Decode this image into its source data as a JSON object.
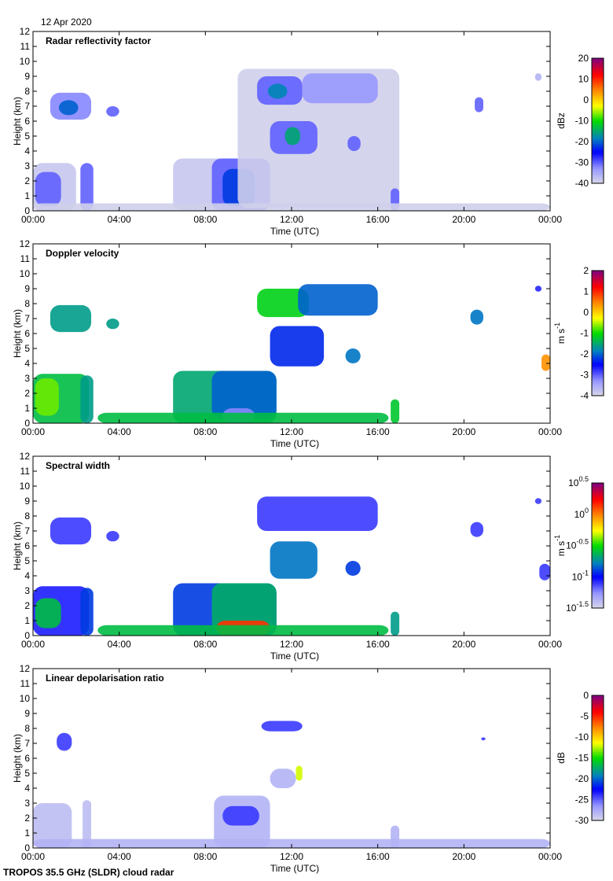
{
  "header": {
    "date": "12 Apr 2020"
  },
  "footer": {
    "caption": "TROPOS 35.5 GHz (SLDR) cloud radar"
  },
  "chart_data": [
    {
      "type": "heatmap",
      "title": "Radar reflectivity factor",
      "xlabel": "Time (UTC)",
      "ylabel": "Height (km)",
      "xlim": [
        0,
        24
      ],
      "ylim": [
        0,
        12
      ],
      "xticks": [
        "00:00",
        "04:00",
        "08:00",
        "12:00",
        "16:00",
        "20:00",
        "00:00"
      ],
      "yticks": [
        "0",
        "1",
        "2",
        "3",
        "4",
        "5",
        "6",
        "7",
        "8",
        "9",
        "10",
        "11",
        "12"
      ],
      "colorbar": {
        "label": "dBz",
        "label_sup": "",
        "range": [
          -40,
          20
        ],
        "ticks": [
          {
            "v": 20,
            "t": "20"
          },
          {
            "v": 10,
            "t": "10"
          },
          {
            "v": 0,
            "t": "0"
          },
          {
            "v": -10,
            "t": "-10"
          },
          {
            "v": -20,
            "t": "-20"
          },
          {
            "v": -30,
            "t": "-30"
          },
          {
            "v": -40,
            "t": "-40"
          }
        ]
      },
      "features": [
        {
          "t": [
            0,
            2,
            0,
            3.2
          ],
          "v": -38
        },
        {
          "t": [
            0.1,
            1.3,
            0.3,
            2.6
          ],
          "v": -30
        },
        {
          "t": [
            2.2,
            2.8,
            0,
            3.2
          ],
          "v": -30
        },
        {
          "t": [
            0.8,
            2.7,
            6.1,
            7.9
          ],
          "v": -32
        },
        {
          "t": [
            1.2,
            2.1,
            6.4,
            7.4
          ],
          "v": -20
        },
        {
          "t": [
            3.4,
            4.0,
            6.3,
            7.0
          ],
          "v": -30
        },
        {
          "t": [
            6.5,
            11,
            0,
            3.5
          ],
          "v": -38
        },
        {
          "t": [
            8.3,
            11,
            0,
            3.5
          ],
          "v": -30
        },
        {
          "t": [
            8.8,
            10.3,
            0.3,
            2.8
          ],
          "v": -22
        },
        {
          "t": [
            9.5,
            17,
            0.2,
            9.5
          ],
          "v": -39
        },
        {
          "t": [
            10.4,
            12.5,
            7.1,
            9
          ],
          "v": -30
        },
        {
          "t": [
            10.9,
            11.8,
            7.5,
            8.5
          ],
          "v": -18
        },
        {
          "t": [
            11,
            13.2,
            3.8,
            6
          ],
          "v": -30
        },
        {
          "t": [
            11.7,
            12.4,
            4.4,
            5.6
          ],
          "v": -15
        },
        {
          "t": [
            12.5,
            16,
            7.2,
            9.2
          ],
          "v": -33
        },
        {
          "t": [
            14.6,
            15.2,
            4,
            5
          ],
          "v": -30
        },
        {
          "t": [
            16.6,
            17,
            0,
            1.5
          ],
          "v": -30
        },
        {
          "t": [
            20.5,
            20.9,
            6.6,
            7.6
          ],
          "v": -30
        },
        {
          "t": [
            23.3,
            23.6,
            8.7,
            9.2
          ],
          "v": -36
        },
        {
          "t": [
            0,
            24,
            0,
            0.5
          ],
          "v": -39
        }
      ]
    },
    {
      "type": "heatmap",
      "title": "Doppler velocity",
      "xlabel": "Time (UTC)",
      "ylabel": "Height (km)",
      "xlim": [
        0,
        24
      ],
      "ylim": [
        0,
        12
      ],
      "xticks": [
        "00:00",
        "04:00",
        "08:00",
        "12:00",
        "16:00",
        "20:00",
        "00:00"
      ],
      "yticks": [
        "0",
        "1",
        "2",
        "3",
        "4",
        "5",
        "6",
        "7",
        "8",
        "9",
        "10",
        "11",
        "12"
      ],
      "colorbar": {
        "label": "m s",
        "label_sup": "-1",
        "range": [
          -4,
          2
        ],
        "ticks": [
          {
            "v": 2,
            "t": "2"
          },
          {
            "v": 1,
            "t": "1"
          },
          {
            "v": 0,
            "t": "0"
          },
          {
            "v": -1,
            "t": "-1"
          },
          {
            "v": -2,
            "t": "-2"
          },
          {
            "v": -3,
            "t": "-3"
          },
          {
            "v": -4,
            "t": "-4"
          }
        ]
      },
      "features": [
        {
          "t": [
            0,
            2.6,
            0,
            3.3
          ],
          "v": -1.3
        },
        {
          "t": [
            0.1,
            1.2,
            0.5,
            3
          ],
          "v": -0.7
        },
        {
          "t": [
            2.2,
            2.8,
            0,
            3.2
          ],
          "v": -1.6
        },
        {
          "t": [
            0.8,
            2.7,
            6.1,
            7.9
          ],
          "v": -1.6
        },
        {
          "t": [
            3.4,
            4.0,
            6.3,
            7.0
          ],
          "v": -1.6
        },
        {
          "t": [
            6.5,
            11.3,
            0,
            3.5
          ],
          "v": -1.5
        },
        {
          "t": [
            8.3,
            11.3,
            0.3,
            3.5
          ],
          "v": -2
        },
        {
          "t": [
            8.8,
            10.3,
            0,
            1
          ],
          "v": -3.2
        },
        {
          "t": [
            10.4,
            12.8,
            7.1,
            9
          ],
          "v": -1.1
        },
        {
          "t": [
            12.3,
            16,
            7.2,
            9.3
          ],
          "v": -2
        },
        {
          "t": [
            11,
            13.5,
            3.8,
            6.5
          ],
          "v": -2.3
        },
        {
          "t": [
            14.5,
            15.2,
            4,
            5
          ],
          "v": -1.9
        },
        {
          "t": [
            16.6,
            17,
            0,
            1.6
          ],
          "v": -1.2
        },
        {
          "t": [
            20.3,
            20.9,
            6.6,
            7.6
          ],
          "v": -1.9
        },
        {
          "t": [
            23.3,
            23.6,
            8.8,
            9.2
          ],
          "v": -2.7
        },
        {
          "t": [
            23.6,
            24,
            3.5,
            4.6
          ],
          "v": 0.4
        },
        {
          "t": [
            3,
            16.5,
            0,
            0.7
          ],
          "v": -1.3
        }
      ]
    },
    {
      "type": "heatmap",
      "title": "Spectral width",
      "xlabel": "Time (UTC)",
      "ylabel": "Height (km)",
      "xlim": [
        0,
        24
      ],
      "ylim": [
        0,
        12
      ],
      "xticks": [
        "00:00",
        "04:00",
        "08:00",
        "12:00",
        "16:00",
        "20:00",
        "00:00"
      ],
      "yticks": [
        "0",
        "1",
        "2",
        "3",
        "4",
        "5",
        "6",
        "7",
        "8",
        "9",
        "10",
        "11",
        "12"
      ],
      "colorbar": {
        "label": "m s",
        "label_sup": "-1",
        "range": [
          -1.5,
          0.5
        ],
        "ticks": [
          {
            "v": 0.5,
            "t": "10",
            "sup": "0.5"
          },
          {
            "v": 0,
            "t": "10",
            "sup": "0"
          },
          {
            "v": -0.5,
            "t": "10",
            "sup": "-0.5"
          },
          {
            "v": -1,
            "t": "10",
            "sup": "-1"
          },
          {
            "v": -1.5,
            "t": "10",
            "sup": "-1.5"
          }
        ]
      },
      "features": [
        {
          "t": [
            0,
            2.6,
            0,
            3.3
          ],
          "v": -1.05
        },
        {
          "t": [
            0.1,
            1.3,
            0.5,
            2.5
          ],
          "v": -0.6
        },
        {
          "t": [
            2.2,
            2.8,
            0,
            3.2
          ],
          "v": -0.9
        },
        {
          "t": [
            0.8,
            2.7,
            6.1,
            7.9
          ],
          "v": -1.1
        },
        {
          "t": [
            3.4,
            4.0,
            6.3,
            7.0
          ],
          "v": -1.1
        },
        {
          "t": [
            6.5,
            11.3,
            0,
            3.5
          ],
          "v": -0.9
        },
        {
          "t": [
            8.3,
            11.3,
            0.3,
            3.5
          ],
          "v": -0.65
        },
        {
          "t": [
            8.5,
            11,
            0,
            1
          ],
          "v": 0.15
        },
        {
          "t": [
            10.4,
            16,
            7,
            9.3
          ],
          "v": -1.1
        },
        {
          "t": [
            11,
            13.2,
            3.8,
            6.3
          ],
          "v": -0.8
        },
        {
          "t": [
            14.5,
            15.2,
            4,
            5
          ],
          "v": -0.9
        },
        {
          "t": [
            16.6,
            17,
            0,
            1.6
          ],
          "v": -0.7
        },
        {
          "t": [
            20.3,
            20.9,
            6.6,
            7.6
          ],
          "v": -1.1
        },
        {
          "t": [
            23.3,
            23.6,
            8.8,
            9.2
          ],
          "v": -1.1
        },
        {
          "t": [
            23.5,
            24,
            3.7,
            4.8
          ],
          "v": -1.1
        },
        {
          "t": [
            3,
            16.5,
            0,
            0.7
          ],
          "v": -0.6
        }
      ]
    },
    {
      "type": "heatmap",
      "title": "Linear depolarisation ratio",
      "xlabel": "Time (UTC)",
      "ylabel": "Height (km)",
      "xlim": [
        0,
        24
      ],
      "ylim": [
        0,
        12
      ],
      "xticks": [
        "00:00",
        "04:00",
        "08:00",
        "12:00",
        "16:00",
        "20:00",
        "00:00"
      ],
      "yticks": [
        "0",
        "1",
        "2",
        "3",
        "4",
        "5",
        "6",
        "7",
        "8",
        "9",
        "10",
        "11",
        "12"
      ],
      "colorbar": {
        "label": "dB",
        "label_sup": "",
        "range": [
          -30,
          0
        ],
        "ticks": [
          {
            "v": 0,
            "t": "0"
          },
          {
            "v": -5,
            "t": "-5"
          },
          {
            "v": -10,
            "t": "-10"
          },
          {
            "v": -15,
            "t": "-15"
          },
          {
            "v": -20,
            "t": "-20"
          },
          {
            "v": -25,
            "t": "-25"
          },
          {
            "v": -30,
            "t": "-30"
          }
        ]
      },
      "features": [
        {
          "t": [
            0,
            1.8,
            0,
            3
          ],
          "v": -28.5
        },
        {
          "t": [
            2.3,
            2.7,
            0,
            3.2
          ],
          "v": -28.5
        },
        {
          "t": [
            1.1,
            1.8,
            6.5,
            7.7
          ],
          "v": -24
        },
        {
          "t": [
            8.4,
            11,
            0,
            3.5
          ],
          "v": -28
        },
        {
          "t": [
            8.8,
            10.5,
            1.5,
            2.8
          ],
          "v": -24
        },
        {
          "t": [
            10.6,
            12.5,
            7.8,
            8.5
          ],
          "v": -24
        },
        {
          "t": [
            11,
            12.2,
            4,
            5.3
          ],
          "v": -28
        },
        {
          "t": [
            12.2,
            12.5,
            4.5,
            5.5
          ],
          "v": -12
        },
        {
          "t": [
            0,
            24,
            0,
            0.6
          ],
          "v": -28
        },
        {
          "t": [
            16.6,
            17,
            0,
            1.5
          ],
          "v": -28
        },
        {
          "t": [
            20.8,
            21,
            7.2,
            7.4
          ],
          "v": -24
        }
      ]
    }
  ]
}
